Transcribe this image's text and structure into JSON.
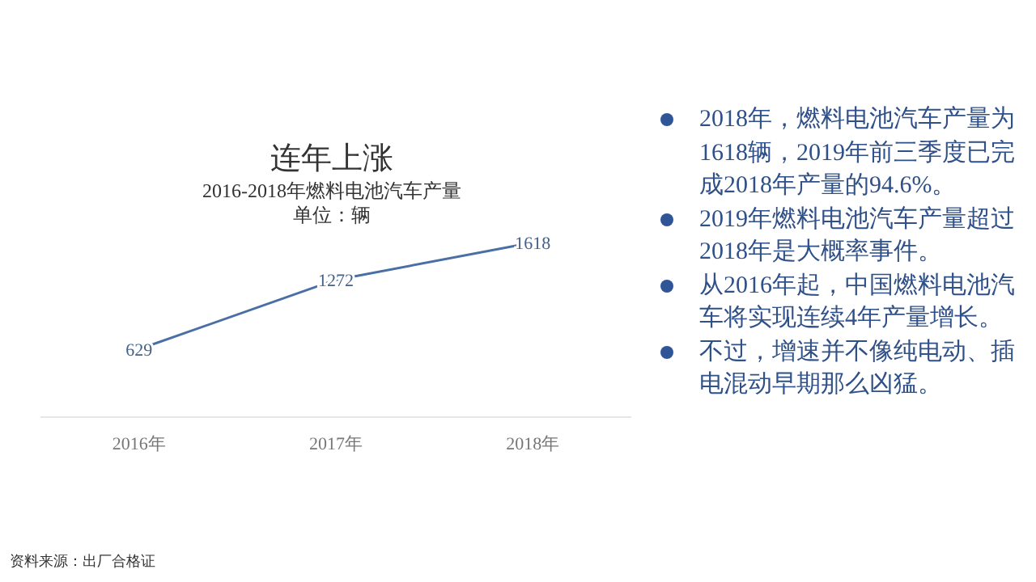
{
  "chart_data": [
    {
      "type": "line",
      "title": "连年上涨",
      "subtitle": "2016-2018年燃料电池汽车产量",
      "categories": [
        "2016年",
        "2017年",
        "2018年"
      ],
      "series": [
        {
          "color": "#4a6fa5",
          "values": [
            629,
            1272,
            1618
          ]
        }
      ],
      "data_labels": true,
      "marker": "none",
      "grid": false,
      "tick_labels": "x",
      "annotations": [
        "单位：辆",
        "资料来源：出厂合格证"
      ]
    },
    {
      "type": "other",
      "annotations": [
        "2018年，燃料电池汽车产量为1618辆，2019年前三季度已完成2018年产量的94.6%。",
        "2019年燃料电池汽车产量超过2018年是大概率事件。",
        "从2016年起，中国燃料电池汽车将实现连续4年产量增长。",
        "不过，增速并不像纯电动、插电混动早期那么凶猛。"
      ]
    }
  ]
}
